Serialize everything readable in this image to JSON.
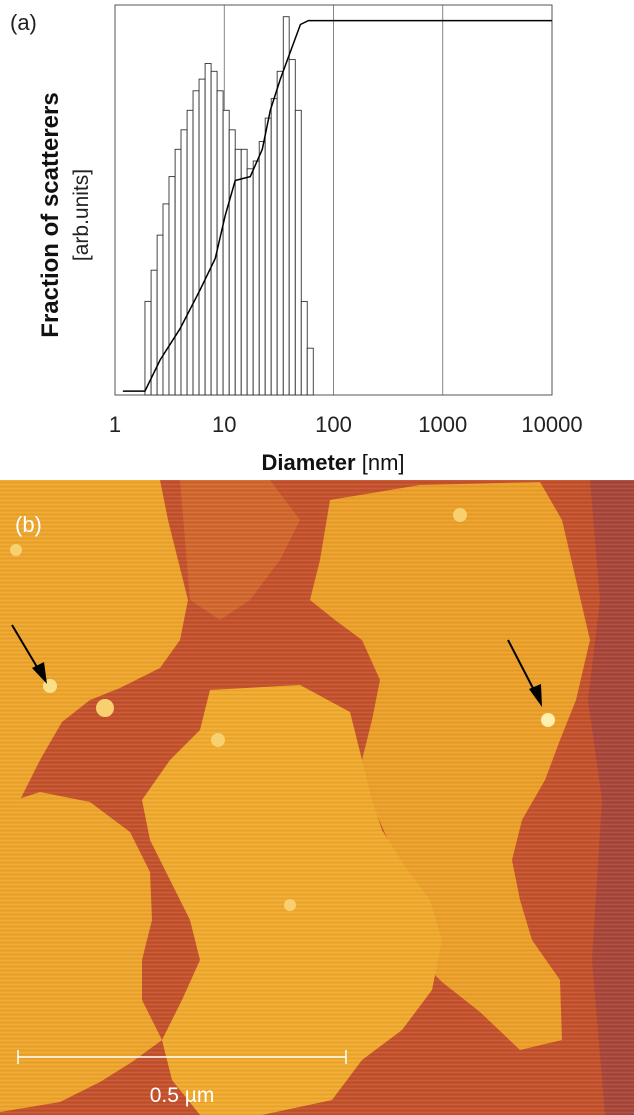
{
  "chart_data": {
    "type": "histogram",
    "panel_label": "(a)",
    "ylabel": "Fraction of scatterers",
    "ylabel_unit": "[arb.units]",
    "xlabel": "Diameter",
    "xlabel_unit": "[nm]",
    "xscale": "log",
    "xlim": [
      1,
      10000
    ],
    "xticks": [
      1,
      10,
      100,
      1000,
      10000
    ],
    "ylim": [
      0,
      1
    ],
    "grid": "x",
    "bins": [
      1.88,
      2.14,
      2.43,
      2.75,
      3.12,
      3.55,
      4.02,
      4.57,
      5.18,
      5.88,
      6.68,
      7.58,
      8.6,
      9.76,
      11.1,
      12.6,
      14.3,
      16.2,
      18.4,
      20.9,
      23.7,
      26.9,
      30.5,
      34.7,
      39.3,
      44.7,
      50.7,
      57.5,
      65.3
    ],
    "counts": [
      0.24,
      0.32,
      0.41,
      0.49,
      0.56,
      0.63,
      0.68,
      0.73,
      0.78,
      0.81,
      0.85,
      0.83,
      0.78,
      0.73,
      0.68,
      0.63,
      0.63,
      0.58,
      0.6,
      0.65,
      0.71,
      0.76,
      0.83,
      0.97,
      0.86,
      0.73,
      0.24,
      0.12
    ],
    "bar_color": "#ffffff",
    "cumulative": {
      "x": [
        1.18,
        1.88,
        2.59,
        3.94,
        6.02,
        8.27,
        10.2,
        12.6,
        17.3,
        22.3,
        26.4,
        32.6,
        40.3,
        49.8,
        58.9,
        10000
      ],
      "y": [
        0.01,
        0.01,
        0.09,
        0.17,
        0.27,
        0.35,
        0.46,
        0.55,
        0.56,
        0.63,
        0.73,
        0.81,
        0.88,
        0.95,
        0.96,
        0.96
      ],
      "color": "#000000"
    }
  },
  "image": {
    "panel_label": "(b)",
    "scale_bar": "0.5 µm"
  }
}
